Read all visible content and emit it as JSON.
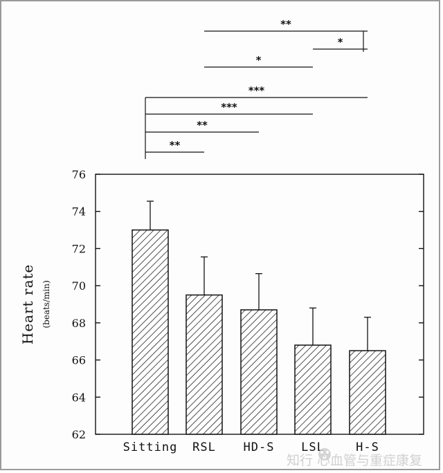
{
  "chart_data": {
    "type": "bar",
    "categories": [
      "Sitting",
      "RSL",
      "HD-S",
      "LSL",
      "H-S"
    ],
    "values": [
      73.0,
      69.5,
      68.7,
      66.8,
      66.5
    ],
    "errors": [
      1.55,
      2.05,
      1.95,
      2.0,
      1.8
    ],
    "ylim": [
      62,
      76
    ],
    "yticks": [
      62,
      64,
      66,
      68,
      70,
      72,
      74,
      76
    ],
    "ylabel": "Heart rate",
    "ylabel_unit": "(beats/min)",
    "bar_fill": "hatched",
    "significance": [
      {
        "from": "RSL",
        "to": "H-S",
        "stars": "**"
      },
      {
        "from": "LSL",
        "to": "H-S",
        "stars": "*"
      },
      {
        "from": "RSL",
        "to": "LSL",
        "stars": "*"
      },
      {
        "from": "Sitting",
        "to": "H-S",
        "stars": "***"
      },
      {
        "from": "Sitting",
        "to": "LSL",
        "stars": "***"
      },
      {
        "from": "Sitting",
        "to": "HD-S",
        "stars": "**"
      },
      {
        "from": "Sitting",
        "to": "RSL",
        "stars": "**"
      }
    ]
  },
  "watermark": {
    "text": "知行 心血管与重症康复",
    "icon": "paw-logo-icon"
  }
}
